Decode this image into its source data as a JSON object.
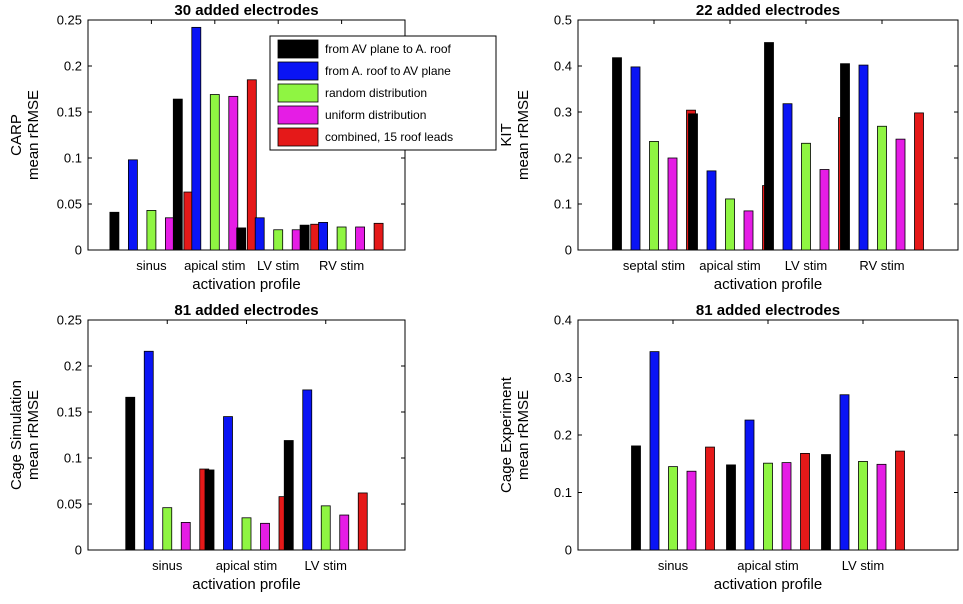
{
  "legend": {
    "entries": [
      {
        "label": "from AV plane to A. roof",
        "color": "#000000"
      },
      {
        "label": "from A. roof to AV plane",
        "color": "#0a14f5"
      },
      {
        "label": "random distribution",
        "color": "#8ff542"
      },
      {
        "label": "uniform distribution",
        "color": "#e51de5"
      },
      {
        "label": "combined, 15 roof leads",
        "color": "#e51919"
      }
    ]
  },
  "chart_data": [
    {
      "type": "bar",
      "title": "30 added electrodes",
      "ylabel": [
        "CARP",
        "mean rRMSE"
      ],
      "xlabel": "activation profile",
      "ylim": [
        0,
        0.25
      ],
      "yticks": [
        0,
        0.05,
        0.1,
        0.15,
        0.2,
        0.25
      ],
      "ytick_labels": [
        "0",
        "0.05",
        "0.1",
        "0.15",
        "0.2",
        "0.25"
      ],
      "categories": [
        "sinus",
        "apical stim",
        "LV stim",
        "RV stim"
      ],
      "legend_position": "top-right",
      "series": [
        {
          "name": "from AV plane to A. roof",
          "values": [
            0.041,
            0.164,
            0.024,
            0.027
          ]
        },
        {
          "name": "from A. roof to AV plane",
          "values": [
            0.098,
            0.242,
            0.035,
            0.03
          ]
        },
        {
          "name": "random distribution",
          "values": [
            0.043,
            0.169,
            0.022,
            0.025
          ]
        },
        {
          "name": "uniform distribution",
          "values": [
            0.035,
            0.167,
            0.022,
            0.025
          ]
        },
        {
          "name": "combined, 15 roof leads",
          "values": [
            0.063,
            0.185,
            0.028,
            0.029
          ]
        }
      ]
    },
    {
      "type": "bar",
      "title": "22 added electrodes",
      "ylabel": [
        "KIT",
        "mean rRMSE"
      ],
      "xlabel": "activation profile",
      "ylim": [
        0,
        0.5
      ],
      "yticks": [
        0,
        0.1,
        0.2,
        0.3,
        0.4,
        0.5
      ],
      "ytick_labels": [
        "0",
        "0.1",
        "0.2",
        "0.3",
        "0.4",
        "0.5"
      ],
      "categories": [
        "septal stim",
        "apical stim",
        "LV stim",
        "RV stim"
      ],
      "series": [
        {
          "name": "from AV plane to A. roof",
          "values": [
            0.418,
            0.296,
            0.451,
            0.405
          ]
        },
        {
          "name": "from A. roof to AV plane",
          "values": [
            0.398,
            0.172,
            0.318,
            0.402
          ]
        },
        {
          "name": "random distribution",
          "values": [
            0.236,
            0.111,
            0.232,
            0.269
          ]
        },
        {
          "name": "uniform distribution",
          "values": [
            0.2,
            0.085,
            0.175,
            0.241
          ]
        },
        {
          "name": "combined, 15 roof leads",
          "values": [
            0.304,
            0.14,
            0.288,
            0.298
          ]
        }
      ]
    },
    {
      "type": "bar",
      "title": "81 added electrodes",
      "ylabel": [
        "Cage Simulation",
        "mean rRMSE"
      ],
      "xlabel": "activation profile",
      "ylim": [
        0,
        0.25
      ],
      "yticks": [
        0,
        0.05,
        0.1,
        0.15,
        0.2,
        0.25
      ],
      "ytick_labels": [
        "0",
        "0.05",
        "0.1",
        "0.15",
        "0.2",
        "0.25"
      ],
      "categories": [
        "sinus",
        "apical stim",
        "LV stim"
      ],
      "series": [
        {
          "name": "from AV plane to A. roof",
          "values": [
            0.166,
            0.087,
            0.119
          ]
        },
        {
          "name": "from A. roof to AV plane",
          "values": [
            0.216,
            0.145,
            0.174
          ]
        },
        {
          "name": "random distribution",
          "values": [
            0.046,
            0.035,
            0.048
          ]
        },
        {
          "name": "uniform distribution",
          "values": [
            0.03,
            0.029,
            0.038
          ]
        },
        {
          "name": "combined, 15 roof leads",
          "values": [
            0.088,
            0.058,
            0.062
          ]
        }
      ]
    },
    {
      "type": "bar",
      "title": "81 added electrodes",
      "ylabel": [
        "Cage Experiment",
        "mean rRMSE"
      ],
      "xlabel": "activation profile",
      "ylim": [
        0,
        0.4
      ],
      "yticks": [
        0,
        0.1,
        0.2,
        0.3,
        0.4
      ],
      "ytick_labels": [
        "0",
        "0.1",
        "0.2",
        "0.3",
        "0.4"
      ],
      "categories": [
        "sinus",
        "apical stim",
        "LV stim"
      ],
      "series": [
        {
          "name": "from AV plane to A. roof",
          "values": [
            0.181,
            0.148,
            0.166
          ]
        },
        {
          "name": "from A. roof to AV plane",
          "values": [
            0.345,
            0.226,
            0.27
          ]
        },
        {
          "name": "random distribution",
          "values": [
            0.145,
            0.151,
            0.154
          ]
        },
        {
          "name": "uniform distribution",
          "values": [
            0.137,
            0.152,
            0.149
          ]
        },
        {
          "name": "combined, 15 roof leads",
          "values": [
            0.179,
            0.168,
            0.172
          ]
        }
      ]
    }
  ]
}
